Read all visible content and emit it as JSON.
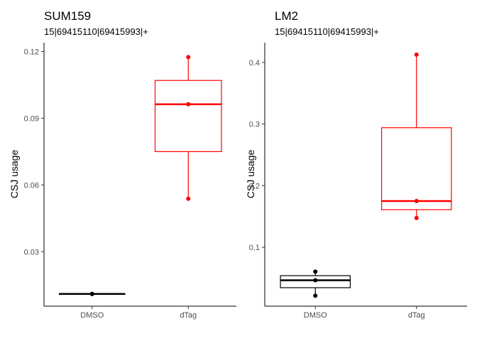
{
  "chart_data": [
    {
      "type": "box",
      "title": "SUM159",
      "subtitle": "15|69415110|69415993|+",
      "ylabel": "CSJ usage",
      "xlabel": "",
      "categories": [
        "DMSO",
        "dTag"
      ],
      "ylim": [
        0.0055,
        0.124
      ],
      "yticks": [
        0.03,
        0.06,
        0.09,
        0.12
      ],
      "ytick_labels": [
        "0.03",
        "0.06",
        "0.09",
        "0.12"
      ],
      "grid": false,
      "legend": "none",
      "series": [
        {
          "category": "DMSO",
          "color": "#000000",
          "min": 0.011,
          "q1": 0.011,
          "median": 0.011,
          "q3": 0.011,
          "max": 0.011,
          "points": [
            0.011,
            0.011,
            0.011
          ]
        },
        {
          "category": "dTag",
          "color": "#ff0000",
          "min": 0.0538,
          "q1": 0.075,
          "median": 0.0963,
          "q3": 0.107,
          "max": 0.1175,
          "points": [
            0.0538,
            0.0963,
            0.1175
          ]
        }
      ]
    },
    {
      "type": "box",
      "title": "LM2",
      "subtitle": "15|69415110|69415993|+",
      "ylabel": "CSJ usage",
      "xlabel": "",
      "categories": [
        "DMSO",
        "dTag"
      ],
      "ylim": [
        0.0045,
        0.432
      ],
      "yticks": [
        0.1,
        0.2,
        0.3,
        0.4
      ],
      "ytick_labels": [
        "0.1",
        "0.2",
        "0.3",
        "0.4"
      ],
      "grid": false,
      "legend": "none",
      "series": [
        {
          "category": "DMSO",
          "color": "#000000",
          "min": 0.0215,
          "q1": 0.0345,
          "median": 0.0465,
          "q3": 0.054,
          "max": 0.0605,
          "points": [
            0.0215,
            0.0465,
            0.0605
          ]
        },
        {
          "category": "dTag",
          "color": "#ff0000",
          "min": 0.1475,
          "q1": 0.161,
          "median": 0.175,
          "q3": 0.294,
          "max": 0.4125,
          "points": [
            0.1475,
            0.175,
            0.4125
          ]
        }
      ]
    }
  ]
}
